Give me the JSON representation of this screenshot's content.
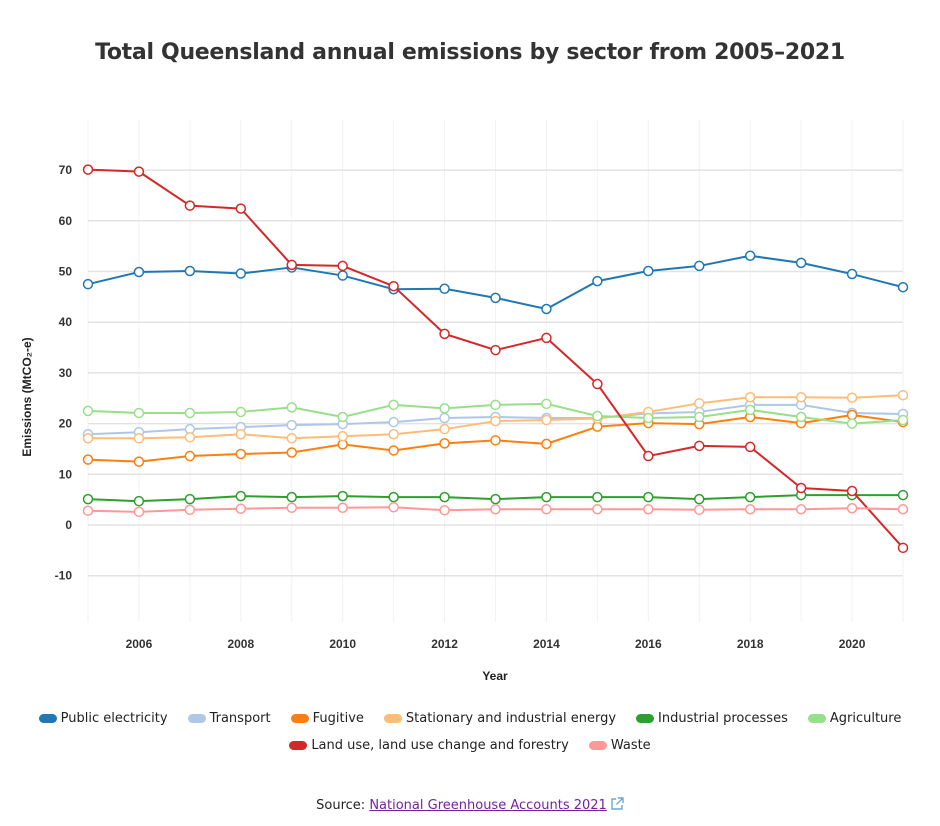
{
  "chart_data": {
    "type": "line",
    "title": "Total Queensland annual emissions by sector from 2005–2021",
    "xlabel": "Year",
    "ylabel": "Emissions (MtCO₂-e)",
    "x": [
      2005,
      2006,
      2007,
      2008,
      2009,
      2010,
      2011,
      2012,
      2013,
      2014,
      2015,
      2016,
      2017,
      2018,
      2019,
      2020,
      2021
    ],
    "xticks": [
      2006,
      2008,
      2010,
      2012,
      2014,
      2016,
      2018,
      2020
    ],
    "xtick_labels": [
      "2006",
      "2008",
      "2010",
      "2012",
      "2014",
      "2016",
      "2018",
      "2020"
    ],
    "yticks": [
      -10,
      0,
      10,
      20,
      30,
      40,
      50,
      60,
      70
    ],
    "ytick_labels": [
      "-10",
      "0",
      "10",
      "20",
      "30",
      "40",
      "50",
      "60",
      "70"
    ],
    "ylim": [
      -20,
      72
    ],
    "xlim": [
      2005,
      2021
    ],
    "grid": true,
    "legend_position": "bottom",
    "series": [
      {
        "name": "Public electricity",
        "color": "#1f77b4",
        "values": [
          47.5,
          49.9,
          50.1,
          49.6,
          50.8,
          49.2,
          46.5,
          46.6,
          44.8,
          42.6,
          48.1,
          50.1,
          51.1,
          53.1,
          51.7,
          49.5,
          46.9
        ]
      },
      {
        "name": "Transport",
        "color": "#aec7e8",
        "values": [
          17.9,
          18.3,
          18.9,
          19.3,
          19.7,
          19.9,
          20.3,
          21.1,
          21.3,
          21.1,
          21.1,
          22.0,
          22.3,
          23.7,
          23.7,
          22.1,
          21.9
        ]
      },
      {
        "name": "Fugitive",
        "color": "#ff7f0e",
        "values": [
          12.9,
          12.5,
          13.6,
          14.0,
          14.3,
          15.9,
          14.7,
          16.1,
          16.7,
          16.0,
          19.4,
          20.1,
          19.9,
          21.3,
          20.1,
          21.7,
          20.3
        ]
      },
      {
        "name": "Stationary and industrial energy",
        "color": "#ffbb78",
        "values": [
          17.1,
          17.1,
          17.3,
          17.9,
          17.1,
          17.5,
          17.9,
          18.9,
          20.5,
          20.7,
          21.0,
          22.3,
          24.0,
          25.2,
          25.2,
          25.1,
          25.6
        ]
      },
      {
        "name": "Industrial processes",
        "color": "#2ca02c",
        "values": [
          5.1,
          4.7,
          5.1,
          5.7,
          5.5,
          5.7,
          5.5,
          5.5,
          5.1,
          5.5,
          5.5,
          5.5,
          5.1,
          5.5,
          5.9,
          5.9,
          5.9
        ]
      },
      {
        "name": "Agriculture",
        "color": "#98df8a",
        "values": [
          22.5,
          22.1,
          22.1,
          22.3,
          23.2,
          21.3,
          23.7,
          23.0,
          23.7,
          23.9,
          21.5,
          21.1,
          21.3,
          22.7,
          21.3,
          20.0,
          20.7
        ]
      },
      {
        "name": "Land use, land use change and forestry",
        "color": "#d62728",
        "values": [
          70.1,
          69.7,
          63.0,
          62.4,
          51.3,
          51.1,
          47.1,
          37.7,
          34.5,
          36.9,
          27.8,
          13.6,
          15.6,
          15.4,
          7.3,
          6.7,
          -4.5
        ]
      },
      {
        "name": "Waste",
        "color": "#ff9896",
        "values": [
          2.8,
          2.6,
          3.0,
          3.2,
          3.4,
          3.4,
          3.5,
          2.9,
          3.1,
          3.1,
          3.1,
          3.1,
          3.0,
          3.1,
          3.1,
          3.3,
          3.1
        ]
      }
    ]
  },
  "legend": {
    "row1": [
      0,
      1,
      2,
      3,
      4,
      5
    ],
    "row2": [
      6,
      7
    ]
  },
  "source": {
    "prefix": "Source: ",
    "link_text": "National Greenhouse Accounts 2021",
    "icon": "external-link-icon"
  }
}
